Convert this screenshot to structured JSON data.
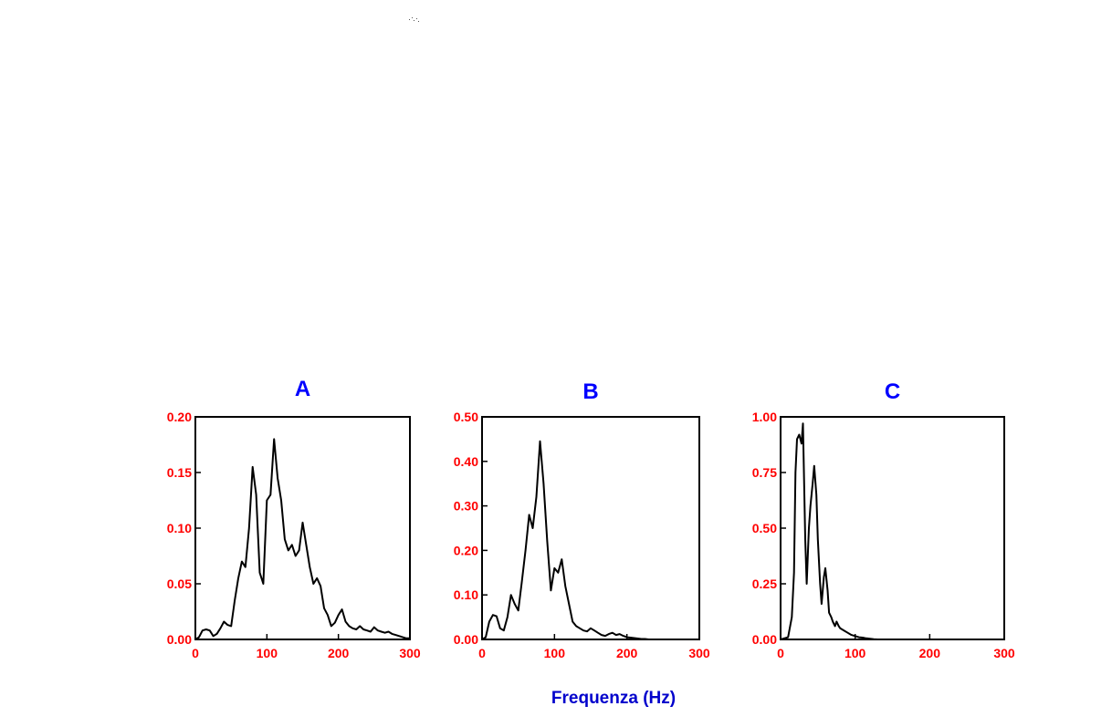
{
  "xlabel": "Frequenza (Hz)",
  "colors": {
    "title": "#0000ff",
    "ticks": "#ff0000",
    "line": "#000000",
    "xlabel": "#0000cc"
  },
  "chart_data": [
    {
      "type": "line",
      "title": "A",
      "xlim": [
        0,
        300
      ],
      "ylim": [
        0,
        0.2
      ],
      "xticks": [
        "0",
        "100",
        "200",
        "300"
      ],
      "yticks": [
        "0.00",
        "0.05",
        "0.10",
        "0.15",
        "0.20"
      ],
      "grid": false,
      "x": [
        0,
        5,
        10,
        15,
        20,
        25,
        30,
        35,
        40,
        45,
        50,
        55,
        60,
        65,
        70,
        75,
        80,
        85,
        90,
        95,
        100,
        105,
        110,
        115,
        120,
        125,
        130,
        135,
        140,
        145,
        150,
        155,
        160,
        165,
        170,
        175,
        180,
        185,
        190,
        195,
        200,
        205,
        210,
        215,
        220,
        225,
        230,
        235,
        240,
        245,
        250,
        255,
        260,
        265,
        270,
        275,
        280,
        285,
        290,
        295,
        300
      ],
      "values": [
        0.0,
        0.002,
        0.008,
        0.009,
        0.008,
        0.003,
        0.005,
        0.01,
        0.016,
        0.013,
        0.012,
        0.035,
        0.055,
        0.07,
        0.065,
        0.1,
        0.155,
        0.13,
        0.06,
        0.05,
        0.125,
        0.13,
        0.18,
        0.145,
        0.125,
        0.09,
        0.08,
        0.085,
        0.075,
        0.08,
        0.105,
        0.085,
        0.065,
        0.05,
        0.055,
        0.048,
        0.028,
        0.022,
        0.012,
        0.015,
        0.022,
        0.027,
        0.016,
        0.012,
        0.01,
        0.009,
        0.012,
        0.009,
        0.008,
        0.007,
        0.011,
        0.008,
        0.007,
        0.006,
        0.007,
        0.005,
        0.004,
        0.003,
        0.002,
        0.001,
        0.001
      ]
    },
    {
      "type": "line",
      "title": "B",
      "xlim": [
        0,
        300
      ],
      "ylim": [
        0,
        0.5
      ],
      "xticks": [
        "0",
        "100",
        "200",
        "300"
      ],
      "yticks": [
        "0.00",
        "0.10",
        "0.20",
        "0.30",
        "0.40",
        "0.50"
      ],
      "grid": false,
      "x": [
        0,
        5,
        10,
        15,
        20,
        25,
        30,
        35,
        40,
        45,
        50,
        55,
        60,
        65,
        70,
        75,
        80,
        85,
        90,
        95,
        100,
        105,
        110,
        115,
        120,
        125,
        130,
        135,
        140,
        145,
        150,
        155,
        160,
        165,
        170,
        175,
        180,
        185,
        190,
        195,
        200,
        205,
        210,
        215,
        220,
        225,
        230,
        235,
        240
      ],
      "values": [
        0.0,
        0.005,
        0.04,
        0.055,
        0.052,
        0.025,
        0.02,
        0.05,
        0.1,
        0.08,
        0.065,
        0.13,
        0.2,
        0.28,
        0.25,
        0.32,
        0.445,
        0.35,
        0.22,
        0.11,
        0.16,
        0.15,
        0.18,
        0.12,
        0.08,
        0.04,
        0.03,
        0.025,
        0.02,
        0.018,
        0.025,
        0.02,
        0.015,
        0.01,
        0.008,
        0.012,
        0.015,
        0.01,
        0.012,
        0.008,
        0.005,
        0.004,
        0.003,
        0.002,
        0.001,
        0.001,
        0.0,
        0.0,
        0.0
      ]
    },
    {
      "type": "line",
      "title": "C",
      "xlim": [
        0,
        300
      ],
      "ylim": [
        0,
        1.0
      ],
      "xticks": [
        "0",
        "100",
        "200",
        "300"
      ],
      "yticks": [
        "0.00",
        "0.25",
        "0.50",
        "0.75",
        "1.00"
      ],
      "grid": false,
      "x": [
        0,
        5,
        10,
        15,
        18,
        20,
        22,
        25,
        28,
        30,
        33,
        35,
        38,
        40,
        43,
        45,
        48,
        50,
        53,
        55,
        58,
        60,
        63,
        65,
        68,
        70,
        73,
        75,
        78,
        80,
        85,
        90,
        95,
        100,
        105,
        110,
        115,
        120,
        125,
        130
      ],
      "values": [
        0.0,
        0.005,
        0.01,
        0.1,
        0.3,
        0.75,
        0.9,
        0.92,
        0.88,
        0.97,
        0.45,
        0.25,
        0.5,
        0.6,
        0.7,
        0.78,
        0.65,
        0.45,
        0.25,
        0.16,
        0.28,
        0.32,
        0.22,
        0.12,
        0.1,
        0.08,
        0.06,
        0.08,
        0.06,
        0.05,
        0.04,
        0.03,
        0.02,
        0.015,
        0.01,
        0.008,
        0.005,
        0.003,
        0.001,
        0.0
      ]
    }
  ]
}
